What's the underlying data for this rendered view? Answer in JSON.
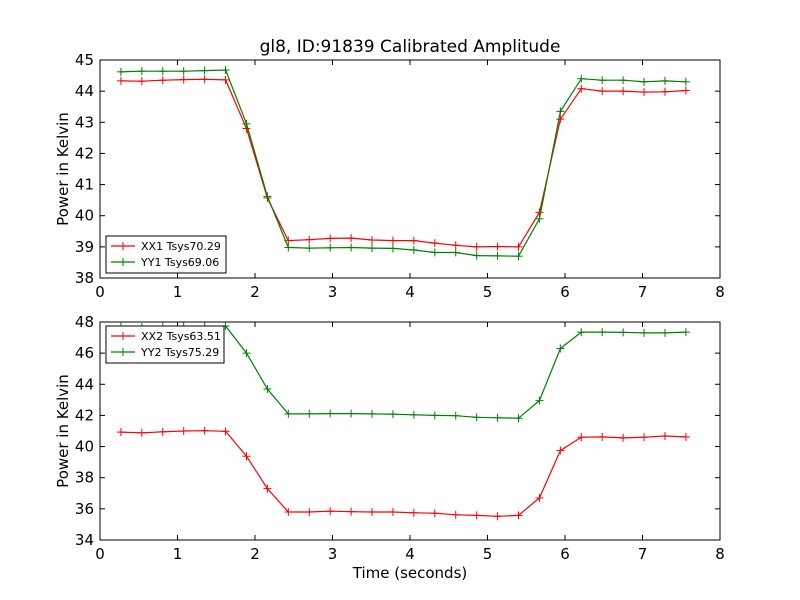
{
  "title": "gl8, ID:91839 Calibrated Amplitude",
  "xlabel": "Time (seconds)",
  "chart_data": [
    {
      "type": "line",
      "title": "gl8, ID:91839 Calibrated Amplitude",
      "xlabel": "",
      "ylabel": "Power in Kelvin",
      "xlim": [
        0,
        8
      ],
      "ylim": [
        38,
        45
      ],
      "xticks": [
        "0",
        "1",
        "2",
        "3",
        "4",
        "5",
        "6",
        "7",
        "8"
      ],
      "yticks": [
        "38",
        "39",
        "40",
        "41",
        "42",
        "43",
        "44",
        "45"
      ],
      "grid": false,
      "legend_position": "lower-left",
      "x": [
        0.27,
        0.54,
        0.81,
        1.08,
        1.35,
        1.62,
        1.89,
        2.16,
        2.43,
        2.7,
        2.97,
        3.24,
        3.51,
        3.78,
        4.05,
        4.32,
        4.59,
        4.86,
        5.13,
        5.4,
        5.67,
        5.94,
        6.21,
        6.48,
        6.75,
        7.02,
        7.29,
        7.56
      ],
      "series": [
        {
          "name": "XX1 Tsys70.29",
          "color": "#ff0000",
          "values": [
            44.33,
            44.32,
            44.35,
            44.37,
            44.38,
            44.36,
            42.8,
            40.57,
            39.2,
            39.23,
            39.27,
            39.28,
            39.22,
            39.2,
            39.2,
            39.12,
            39.05,
            39.0,
            39.01,
            39.0,
            40.1,
            43.1,
            44.08,
            44.0,
            44.0,
            43.97,
            43.98,
            44.02
          ]
        },
        {
          "name": "YY1 Tsys69.06",
          "color": "#008000",
          "values": [
            44.62,
            44.64,
            44.64,
            44.64,
            44.66,
            44.68,
            42.95,
            40.62,
            38.98,
            38.96,
            38.97,
            38.98,
            38.96,
            38.95,
            38.9,
            38.82,
            38.82,
            38.72,
            38.71,
            38.7,
            39.9,
            43.35,
            44.4,
            44.35,
            44.35,
            44.3,
            44.33,
            44.3
          ]
        }
      ]
    },
    {
      "type": "line",
      "title": "",
      "xlabel": "Time (seconds)",
      "ylabel": "Power in Kelvin",
      "xlim": [
        0,
        8
      ],
      "ylim": [
        34,
        48
      ],
      "xticks": [
        "0",
        "1",
        "2",
        "3",
        "4",
        "5",
        "6",
        "7",
        "8"
      ],
      "yticks": [
        "34",
        "36",
        "38",
        "40",
        "42",
        "44",
        "46",
        "48"
      ],
      "grid": false,
      "legend_position": "upper-left",
      "x": [
        0.27,
        0.54,
        0.81,
        1.08,
        1.35,
        1.62,
        1.89,
        2.16,
        2.43,
        2.7,
        2.97,
        3.24,
        3.51,
        3.78,
        4.05,
        4.32,
        4.59,
        4.86,
        5.13,
        5.4,
        5.67,
        5.94,
        6.21,
        6.48,
        6.75,
        7.02,
        7.29,
        7.56
      ],
      "series": [
        {
          "name": "XX2 Tsys63.51",
          "color": "#ff0000",
          "values": [
            40.93,
            40.88,
            40.95,
            41.0,
            41.02,
            40.98,
            39.38,
            37.3,
            35.8,
            35.8,
            35.85,
            35.82,
            35.8,
            35.8,
            35.75,
            35.72,
            35.62,
            35.58,
            35.52,
            35.58,
            36.7,
            39.75,
            40.6,
            40.62,
            40.56,
            40.6,
            40.68,
            40.62
          ]
        },
        {
          "name": "YY2 Tsys75.29",
          "color": "#008000",
          "values": [
            47.7,
            47.68,
            47.7,
            47.72,
            47.72,
            47.74,
            46.0,
            43.7,
            42.1,
            42.1,
            42.12,
            42.12,
            42.1,
            42.08,
            42.04,
            42.0,
            41.98,
            41.88,
            41.85,
            41.82,
            42.95,
            46.3,
            47.35,
            47.35,
            47.33,
            47.3,
            47.3,
            47.35
          ]
        }
      ]
    }
  ]
}
